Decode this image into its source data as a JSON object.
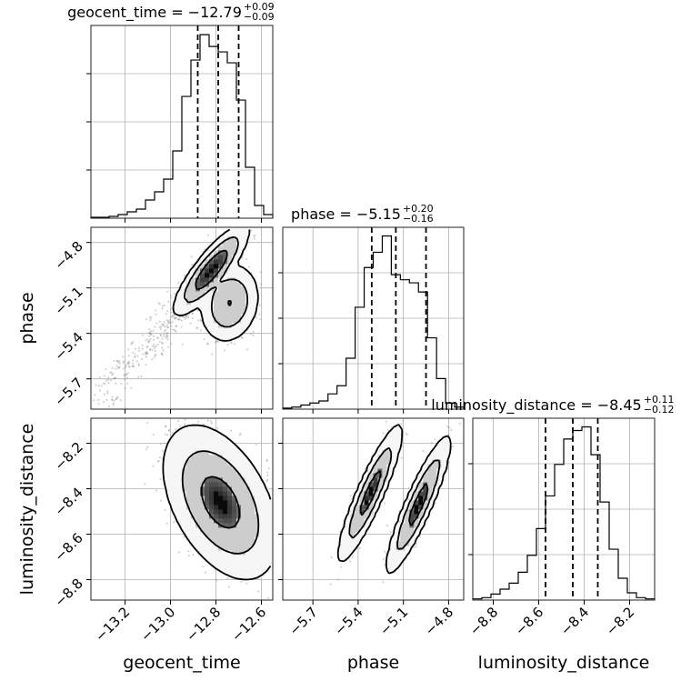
{
  "chart_data": {
    "type": "corner",
    "parameters": [
      {
        "name": "geocent_time",
        "range": [
          -13.35,
          -12.55
        ],
        "ticks": [
          -13.2,
          -13.0,
          -12.8,
          -12.6
        ],
        "tick_labels": [
          "−13.2",
          "−13.0",
          "−12.8",
          "−12.6"
        ],
        "title_main": "geocent_time = −12.79",
        "title_sup": "+0.09",
        "title_sub": "−0.09",
        "median": -12.79,
        "q_low": -12.88,
        "q_high": -12.7,
        "hist_bin_edges": [
          -13.35,
          -13.31,
          -13.27,
          -13.23,
          -13.19,
          -13.15,
          -13.11,
          -13.07,
          -13.03,
          -12.99,
          -12.95,
          -12.91,
          -12.87,
          -12.83,
          -12.79,
          -12.75,
          -12.71,
          -12.67,
          -12.63,
          -12.59,
          -12.55
        ],
        "hist_counts": [
          2,
          2,
          4,
          8,
          14,
          20,
          40,
          58,
          86,
          148,
          268,
          348,
          404,
          378,
          366,
          342,
          260,
          112,
          28,
          8
        ]
      },
      {
        "name": "phase",
        "range": [
          -5.9,
          -4.7
        ],
        "ticks": [
          -5.7,
          -5.4,
          -5.1,
          -4.8
        ],
        "tick_labels": [
          "−5.7",
          "−5.4",
          "−5.1",
          "−4.8"
        ],
        "title_main": "phase = −5.15",
        "title_sup": "+0.20",
        "title_sub": "−0.16",
        "median": -5.15,
        "q_low": -5.31,
        "q_high": -4.95,
        "hist_bin_edges": [
          -5.9,
          -5.84,
          -5.78,
          -5.72,
          -5.66,
          -5.6,
          -5.54,
          -5.48,
          -5.42,
          -5.36,
          -5.3,
          -5.24,
          -5.18,
          -5.12,
          -5.06,
          -5.0,
          -4.94,
          -4.88,
          -4.82,
          -4.76,
          -4.7
        ],
        "hist_counts": [
          2,
          4,
          8,
          12,
          16,
          30,
          46,
          100,
          200,
          278,
          308,
          340,
          264,
          254,
          248,
          230,
          140,
          60,
          12,
          4
        ]
      },
      {
        "name": "luminosity_distance",
        "range": [
          -8.89,
          -8.09
        ],
        "ticks": [
          -8.8,
          -8.6,
          -8.4,
          -8.2
        ],
        "tick_labels": [
          "−8.8",
          "−8.6",
          "−8.4",
          "−8.2"
        ],
        "title_main": "luminosity_distance = −8.45",
        "title_sup": "+0.11",
        "title_sub": "−0.12",
        "median": -8.45,
        "q_low": -8.57,
        "q_high": -8.34,
        "hist_bin_edges": [
          -8.89,
          -8.85,
          -8.81,
          -8.77,
          -8.73,
          -8.69,
          -8.65,
          -8.61,
          -8.57,
          -8.53,
          -8.49,
          -8.45,
          -8.41,
          -8.37,
          -8.33,
          -8.29,
          -8.25,
          -8.21,
          -8.17,
          -8.13,
          -8.09
        ],
        "hist_counts": [
          2,
          4,
          10,
          18,
          28,
          46,
          74,
          118,
          172,
          224,
          266,
          280,
          286,
          240,
          162,
          84,
          36,
          12,
          4,
          2
        ]
      }
    ],
    "pairs": [
      {
        "x": "geocent_time",
        "y": "phase",
        "modes": [
          {
            "mx": -12.82,
            "my": -4.98,
            "sx": 0.055,
            "sy": 0.1,
            "rho": 0.85,
            "w": 0.62
          },
          {
            "mx": -12.74,
            "my": -5.2,
            "sx": 0.045,
            "sy": 0.09,
            "rho": 0.15,
            "w": 0.38
          }
        ],
        "tail": {
          "x_from": -12.92,
          "x_to": -13.3,
          "y_from": -5.2,
          "y_to": -5.8
        }
      },
      {
        "x": "geocent_time",
        "y": "luminosity_distance",
        "modes": [
          {
            "mx": -12.78,
            "my": -8.46,
            "sx": 0.085,
            "sy": 0.115,
            "rho": -0.45,
            "w": 1.0
          }
        ]
      },
      {
        "x": "phase",
        "y": "luminosity_distance",
        "modes": [
          {
            "mx": -5.32,
            "my": -8.42,
            "sx": 0.07,
            "sy": 0.1,
            "rho": 0.9,
            "w": 0.5
          },
          {
            "mx": -5.0,
            "my": -8.47,
            "sx": 0.07,
            "sy": 0.1,
            "rho": 0.9,
            "w": 0.5
          }
        ]
      }
    ],
    "quantiles": [
      0.16,
      0.5,
      0.84
    ],
    "contour_levels": [
      0.39,
      0.86,
      0.99
    ],
    "grid": true,
    "sample_color": "#808080",
    "line_color": "#000000"
  }
}
